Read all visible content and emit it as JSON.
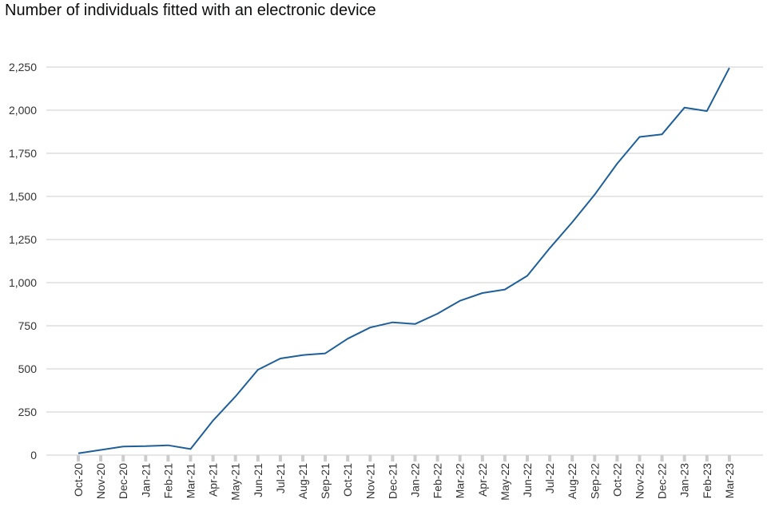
{
  "chart_data": {
    "type": "line",
    "title": "Number of individuals fitted with an electronic device",
    "xlabel": "",
    "ylabel": "",
    "ylim": [
      0,
      2250
    ],
    "yticks": [
      0,
      250,
      500,
      750,
      1000,
      1250,
      1500,
      1750,
      2000,
      2250
    ],
    "ytick_labels": [
      "0",
      "250",
      "500",
      "750",
      "1,000",
      "1,250",
      "1,500",
      "1,750",
      "2,000",
      "2,250"
    ],
    "grid": "horizontal",
    "legend": "none",
    "categories": [
      "Oct-20",
      "Nov-20",
      "Dec-20",
      "Jan-21",
      "Feb-21",
      "Mar-21",
      "Apr-21",
      "May-21",
      "Jun-21",
      "Jul-21",
      "Aug-21",
      "Sep-21",
      "Oct-21",
      "Nov-21",
      "Dec-21",
      "Jan-22",
      "Feb-22",
      "Mar-22",
      "Apr-22",
      "May-22",
      "Jun-22",
      "Jul-22",
      "Aug-22",
      "Sep-22",
      "Oct-22",
      "Nov-22",
      "Dec-22",
      "Jan-23",
      "Feb-23",
      "Mar-23"
    ],
    "series": [
      {
        "values": [
          10,
          30,
          50,
          52,
          57,
          35,
          200,
          340,
          495,
          560,
          580,
          590,
          675,
          740,
          770,
          760,
          820,
          895,
          940,
          960,
          1040,
          1200,
          1350,
          1510,
          1690,
          1845,
          1860,
          2015,
          1995,
          2245
        ],
        "color": "#1f5f99"
      }
    ],
    "gridline_color": "#cccccc",
    "tick_mark_color": "#cccccc"
  }
}
